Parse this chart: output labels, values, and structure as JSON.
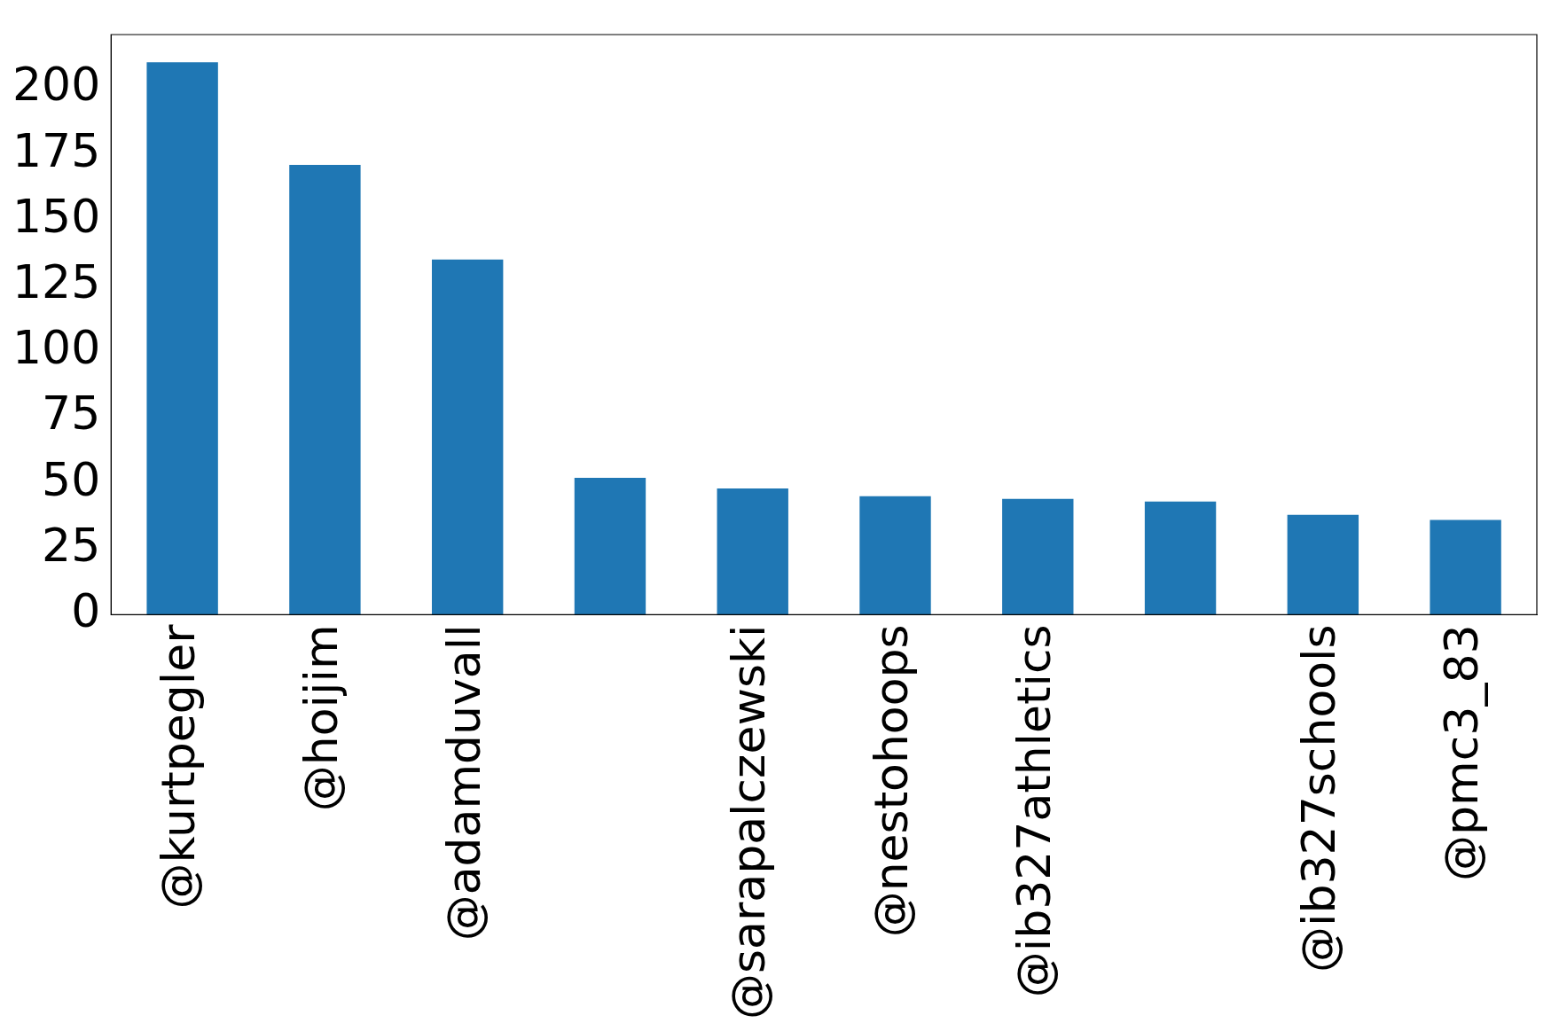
{
  "chart_data": {
    "type": "bar",
    "categories": [
      "@kurtpegler",
      "@hoijim",
      "@adamduvall",
      null,
      "@sarapalczewski",
      "@nestohoops",
      "@ib327athletics",
      null,
      "@ib327schools",
      "@pmc3_83"
    ],
    "values": [
      210,
      171,
      135,
      52,
      48,
      45,
      44,
      43,
      38,
      36
    ],
    "color": "#1f77b4",
    "ylim": [
      0,
      220.5
    ],
    "yticks": [
      0,
      25,
      50,
      75,
      100,
      125,
      150,
      175,
      200
    ],
    "grid": false,
    "legend": false
  }
}
